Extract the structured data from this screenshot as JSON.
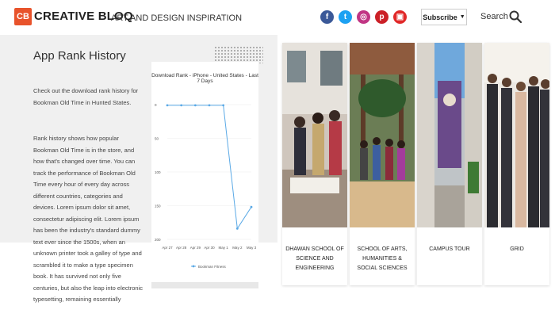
{
  "header": {
    "logo_mark": "CB",
    "logo_text": "CREATIVE BLOQ",
    "tagline": "ART AND DESIGN INSPIRATION",
    "social_icons": [
      "facebook-icon",
      "twitter-icon",
      "instagram-icon",
      "pinterest-icon",
      "flipboard-icon"
    ],
    "social_colors": [
      "#3b5998",
      "#1da1f2",
      "#c13584",
      "#cb2027",
      "#e12828"
    ],
    "subscribe_label": "Subscribe",
    "search_label": "Search"
  },
  "panel": {
    "title": "App Rank History",
    "intro": "Check out the download rank history for Bookman Old Time in Hunted States.",
    "body": "Rank history shows how popular Bookman Old Time is in the store, and how that's changed over time. You can track the performance of Bookman Old Time every hour of every day across different countries, categories and devices. Lorem ipsum dolor sit amet, consectetur adipiscing elit. Lorem ipsum has been the industry's standard dummy text ever since the 1500s, when an unknown printer took a galley of type and scrambled it to make a type specimen book. It has survived not only five centuries, but also the leap into electronic typesetting, remaining essentially unchanged."
  },
  "chart_data": {
    "type": "line",
    "title": "Download Rank - iPhone - United States - Last 7 Days",
    "x": [
      "Apr 27",
      "Apr 28",
      "Apr 29",
      "Apr 30",
      "May 1",
      "May 2",
      "May 3"
    ],
    "yticks": [
      "0",
      "50",
      "100",
      "150",
      "200"
    ],
    "ylim": [
      0,
      200
    ],
    "y_inverted": true,
    "series": [
      {
        "name": "Bookman Fitness",
        "values": [
          1,
          1,
          1,
          1,
          1,
          184,
          152
        ]
      }
    ],
    "line_color": "#5aa9e6",
    "legend_position": "bottom"
  },
  "schools": [
    {
      "label": "DHAWAN SCHOOL OF SCIENCE AND ENGINEERING"
    },
    {
      "label": "SCHOOL OF ARTS, HUMANITIES & SOCIAL SCIENCES"
    },
    {
      "label": "CAMPUS TOUR"
    },
    {
      "label": "GRID"
    }
  ]
}
